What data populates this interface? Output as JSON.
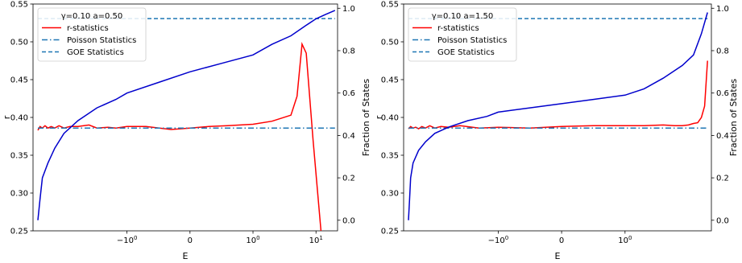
{
  "chart_data": [
    {
      "type": "line",
      "title": "",
      "xlabel": "E",
      "ylabel": "r",
      "y2label": "Fraction of States",
      "xscale": "symlog",
      "ylim": [
        0.25,
        0.55
      ],
      "y2lim": [
        -0.05,
        1.02
      ],
      "xlim": [
        -31,
        22
      ],
      "yticks": [
        0.25,
        0.3,
        0.35,
        0.4,
        0.45,
        0.5,
        0.55
      ],
      "ytick_labels": [
        "0.25",
        "0.30",
        "0.35",
        "0.40",
        "0.45",
        "0.50",
        "0.55"
      ],
      "y2ticks": [
        0.0,
        0.2,
        0.4,
        0.6,
        0.8,
        1.0
      ],
      "y2tick_labels": [
        "0.0",
        "0.2",
        "0.4",
        "0.6",
        "0.8",
        "1.0"
      ],
      "xticks": [
        -1,
        0,
        1,
        10
      ],
      "xtick_labels": [
        "−100",
        "0",
        "100",
        "101"
      ],
      "legend_title": "γ=0.10 a=0.50",
      "legend_location": "upper left",
      "series": [
        {
          "name": "r-statistics",
          "color": "#ff0000",
          "style": "solid",
          "axis": "left",
          "x": [
            -26,
            -24,
            -22,
            -20,
            -18,
            -16,
            -14,
            -12,
            -10,
            -8,
            -6,
            -4,
            -3,
            -2,
            -1.5,
            -1,
            -0.7,
            -0.3,
            0,
            0.3,
            0.6,
            1,
            2,
            4,
            5,
            6,
            7,
            9,
            12
          ],
          "y": [
            0.383,
            0.388,
            0.386,
            0.389,
            0.386,
            0.388,
            0.386,
            0.389,
            0.386,
            0.388,
            0.388,
            0.39,
            0.386,
            0.387,
            0.386,
            0.388,
            0.388,
            0.384,
            0.386,
            0.388,
            0.389,
            0.391,
            0.395,
            0.403,
            0.428,
            0.497,
            0.485,
            0.37,
            0.25
          ]
        },
        {
          "name": "Poisson Statistics",
          "color": "#1f77b4",
          "style": "dashdot",
          "axis": "left",
          "x": [
            -26,
            20
          ],
          "y": [
            0.386,
            0.386
          ]
        },
        {
          "name": "GOE Statistics",
          "color": "#1f77b4",
          "style": "dashed",
          "axis": "left",
          "x": [
            -26,
            20
          ],
          "y": [
            0.5307,
            0.5307
          ]
        },
        {
          "name": "",
          "color": "#0000cc",
          "style": "solid",
          "axis": "right",
          "x": [
            -26,
            -24,
            -22,
            -18,
            -14,
            -10,
            -6,
            -3,
            -1.5,
            -1,
            -0.5,
            0,
            0.5,
            1,
            2,
            4,
            7,
            10,
            14,
            20
          ],
          "y": [
            0.0,
            0.1,
            0.2,
            0.27,
            0.34,
            0.41,
            0.47,
            0.53,
            0.57,
            0.6,
            0.65,
            0.7,
            0.74,
            0.78,
            0.83,
            0.87,
            0.92,
            0.95,
            0.97,
            0.99
          ]
        }
      ]
    },
    {
      "type": "line",
      "title": "",
      "xlabel": "E",
      "ylabel": "r",
      "y2label": "Fraction of States",
      "xscale": "symlog",
      "ylim": [
        0.25,
        0.55
      ],
      "y2lim": [
        -0.05,
        1.02
      ],
      "xlim": [
        -31,
        23
      ],
      "yticks": [
        0.25,
        0.3,
        0.35,
        0.4,
        0.45,
        0.5,
        0.55
      ],
      "ytick_labels": [
        "0.25",
        "0.30",
        "0.35",
        "0.40",
        "0.45",
        "0.50",
        "0.55"
      ],
      "y2ticks": [
        0.0,
        0.2,
        0.4,
        0.6,
        0.8,
        1.0
      ],
      "y2tick_labels": [
        "0.0",
        "0.2",
        "0.4",
        "0.6",
        "0.8",
        "1.0"
      ],
      "xticks": [
        -1,
        0,
        1
      ],
      "xtick_labels": [
        "−100",
        "0",
        "100"
      ],
      "legend_title": "γ=0.10 a=1.50",
      "legend_location": "upper left",
      "series": [
        {
          "name": "r-statistics",
          "color": "#ff0000",
          "style": "solid",
          "axis": "left",
          "x": [
            -26,
            -24,
            -22,
            -20,
            -18,
            -16,
            -14,
            -12,
            -10,
            -8,
            -6,
            -4,
            -2,
            -1,
            -0.5,
            0,
            0.5,
            1,
            2,
            4,
            6,
            8,
            10,
            12,
            14,
            16,
            18,
            20
          ],
          "y": [
            0.385,
            0.388,
            0.386,
            0.387,
            0.385,
            0.388,
            0.386,
            0.389,
            0.386,
            0.388,
            0.387,
            0.389,
            0.386,
            0.387,
            0.386,
            0.388,
            0.389,
            0.389,
            0.389,
            0.39,
            0.389,
            0.389,
            0.39,
            0.392,
            0.393,
            0.4,
            0.415,
            0.475
          ]
        },
        {
          "name": "Poisson Statistics",
          "color": "#1f77b4",
          "style": "dashdot",
          "axis": "left",
          "x": [
            -26,
            20
          ],
          "y": [
            0.386,
            0.386
          ]
        },
        {
          "name": "GOE Statistics",
          "color": "#1f77b4",
          "style": "dashed",
          "axis": "left",
          "x": [
            -26,
            20
          ],
          "y": [
            0.5307,
            0.5307
          ]
        },
        {
          "name": "",
          "color": "#0000cc",
          "style": "solid",
          "axis": "right",
          "x": [
            -26,
            -25,
            -24,
            -22,
            -18,
            -14,
            -10,
            -6,
            -3,
            -1.5,
            -1,
            -0.5,
            0,
            0.5,
            1,
            2,
            4,
            8,
            12,
            16,
            20
          ],
          "y": [
            0.0,
            0.1,
            0.2,
            0.27,
            0.33,
            0.37,
            0.41,
            0.44,
            0.47,
            0.49,
            0.51,
            0.53,
            0.55,
            0.57,
            0.59,
            0.62,
            0.67,
            0.73,
            0.78,
            0.88,
            0.98
          ]
        }
      ]
    }
  ]
}
